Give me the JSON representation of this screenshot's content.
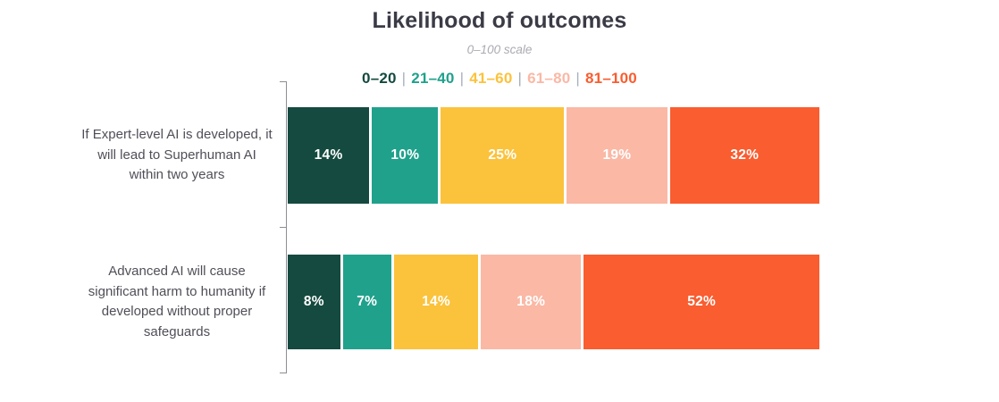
{
  "title": "Likelihood of outcomes",
  "subtitle": "0–100 scale",
  "legend": {
    "separator": "|",
    "items": [
      {
        "label": "0–20",
        "color": "#144a3f"
      },
      {
        "label": "21–40",
        "color": "#20a18c"
      },
      {
        "label": "41–60",
        "color": "#fbc23c"
      },
      {
        "label": "61–80",
        "color": "#fab8a5"
      },
      {
        "label": "81–100",
        "color": "#f95d30"
      }
    ]
  },
  "chart_data": {
    "type": "bar",
    "variant": "stacked-horizontal",
    "value_format": "percent",
    "scale": [
      0,
      100
    ],
    "title": "Likelihood of outcomes",
    "subtitle": "0–100 scale",
    "legend_position": "top-center",
    "categories": [
      "If Expert-level AI is developed, it will lead to Superhuman AI within two years",
      "Advanced AI will cause significant harm to humanity if developed without proper safeguards"
    ],
    "series": [
      {
        "name": "0–20",
        "color": "#144a3f",
        "values": [
          14,
          8
        ]
      },
      {
        "name": "21–40",
        "color": "#20a18c",
        "values": [
          10,
          7
        ]
      },
      {
        "name": "41–60",
        "color": "#fbc23c",
        "values": [
          25,
          14
        ]
      },
      {
        "name": "61–80",
        "color": "#fab8a5",
        "values": [
          19,
          18
        ]
      },
      {
        "name": "81–100",
        "color": "#f95d30",
        "values": [
          32,
          52
        ]
      }
    ],
    "segment_labels": [
      [
        "14%",
        "10%",
        "25%",
        "19%",
        "32%"
      ],
      [
        "8%",
        "7%",
        "14%",
        "18%",
        "52%"
      ]
    ]
  },
  "colors": {
    "title_text": "#3b3b46",
    "subtitle_text": "#aaaab2",
    "category_text": "#4f4f58",
    "axis_line": "#8d8d93",
    "legend_separator": "#a6afc0",
    "bar_value_text": "#ffffff"
  }
}
